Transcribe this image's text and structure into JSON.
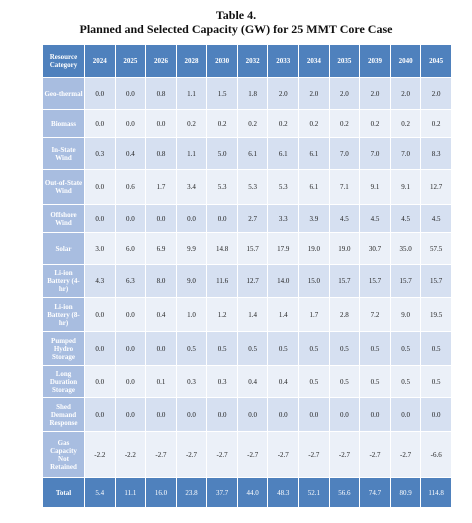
{
  "title": {
    "number": "Table 4.",
    "caption": "Planned and Selected Capacity (GW) for 25 MMT Core Case"
  },
  "table": {
    "header": [
      "Resource Category",
      "2024",
      "2025",
      "2026",
      "2028",
      "2030",
      "2032",
      "2033",
      "2034",
      "2035",
      "2039",
      "2040",
      "2045"
    ],
    "rows": [
      {
        "label": "Geo-thermal",
        "values": [
          "0.0",
          "0.0",
          "0.8",
          "1.1",
          "1.5",
          "1.8",
          "2.0",
          "2.0",
          "2.0",
          "2.0",
          "2.0",
          "2.0"
        ]
      },
      {
        "label": "Biomass",
        "values": [
          "0.0",
          "0.0",
          "0.0",
          "0.2",
          "0.2",
          "0.2",
          "0.2",
          "0.2",
          "0.2",
          "0.2",
          "0.2",
          "0.2"
        ]
      },
      {
        "label": "In-State Wind",
        "values": [
          "0.3",
          "0.4",
          "0.8",
          "1.1",
          "5.0",
          "6.1",
          "6.1",
          "6.1",
          "7.0",
          "7.0",
          "7.0",
          "8.3"
        ]
      },
      {
        "label": "Out-of-State Wind",
        "values": [
          "0.0",
          "0.6",
          "1.7",
          "3.4",
          "5.3",
          "5.3",
          "5.3",
          "6.1",
          "7.1",
          "9.1",
          "9.1",
          "12.7"
        ]
      },
      {
        "label": "Offshore Wind",
        "values": [
          "0.0",
          "0.0",
          "0.0",
          "0.0",
          "0.0",
          "2.7",
          "3.3",
          "3.9",
          "4.5",
          "4.5",
          "4.5",
          "4.5"
        ]
      },
      {
        "label": "Solar",
        "values": [
          "3.0",
          "6.0",
          "6.9",
          "9.9",
          "14.8",
          "15.7",
          "17.9",
          "19.0",
          "19.0",
          "30.7",
          "35.0",
          "57.5"
        ]
      },
      {
        "label": "Li-ion Battery (4-hr)",
        "values": [
          "4.3",
          "6.3",
          "8.0",
          "9.0",
          "11.6",
          "12.7",
          "14.0",
          "15.0",
          "15.7",
          "15.7",
          "15.7",
          "15.7"
        ]
      },
      {
        "label": "Li-ion Battery (8-hr)",
        "values": [
          "0.0",
          "0.0",
          "0.4",
          "1.0",
          "1.2",
          "1.4",
          "1.4",
          "1.7",
          "2.8",
          "7.2",
          "9.0",
          "19.5"
        ]
      },
      {
        "label": "Pumped Hydro Storage",
        "values": [
          "0.0",
          "0.0",
          "0.0",
          "0.5",
          "0.5",
          "0.5",
          "0.5",
          "0.5",
          "0.5",
          "0.5",
          "0.5",
          "0.5"
        ]
      },
      {
        "label": "Long Duration Storage",
        "values": [
          "0.0",
          "0.0",
          "0.1",
          "0.3",
          "0.3",
          "0.4",
          "0.4",
          "0.5",
          "0.5",
          "0.5",
          "0.5",
          "0.5"
        ]
      },
      {
        "label": "Shed Demand Response",
        "values": [
          "0.0",
          "0.0",
          "0.0",
          "0.0",
          "0.0",
          "0.0",
          "0.0",
          "0.0",
          "0.0",
          "0.0",
          "0.0",
          "0.0"
        ]
      },
      {
        "label": "Gas Capacity Not Retained",
        "values": [
          "-2.2",
          "-2.2",
          "-2.7",
          "-2.7",
          "-2.7",
          "-2.7",
          "-2.7",
          "-2.7",
          "-2.7",
          "-2.7",
          "-2.7",
          "-6.6"
        ]
      }
    ],
    "total": {
      "label": "Total",
      "values": [
        "5.4",
        "11.1",
        "16.0",
        "23.8",
        "37.7",
        "44.0",
        "48.3",
        "52.1",
        "56.6",
        "74.7",
        "80.9",
        "114.8"
      ]
    }
  }
}
